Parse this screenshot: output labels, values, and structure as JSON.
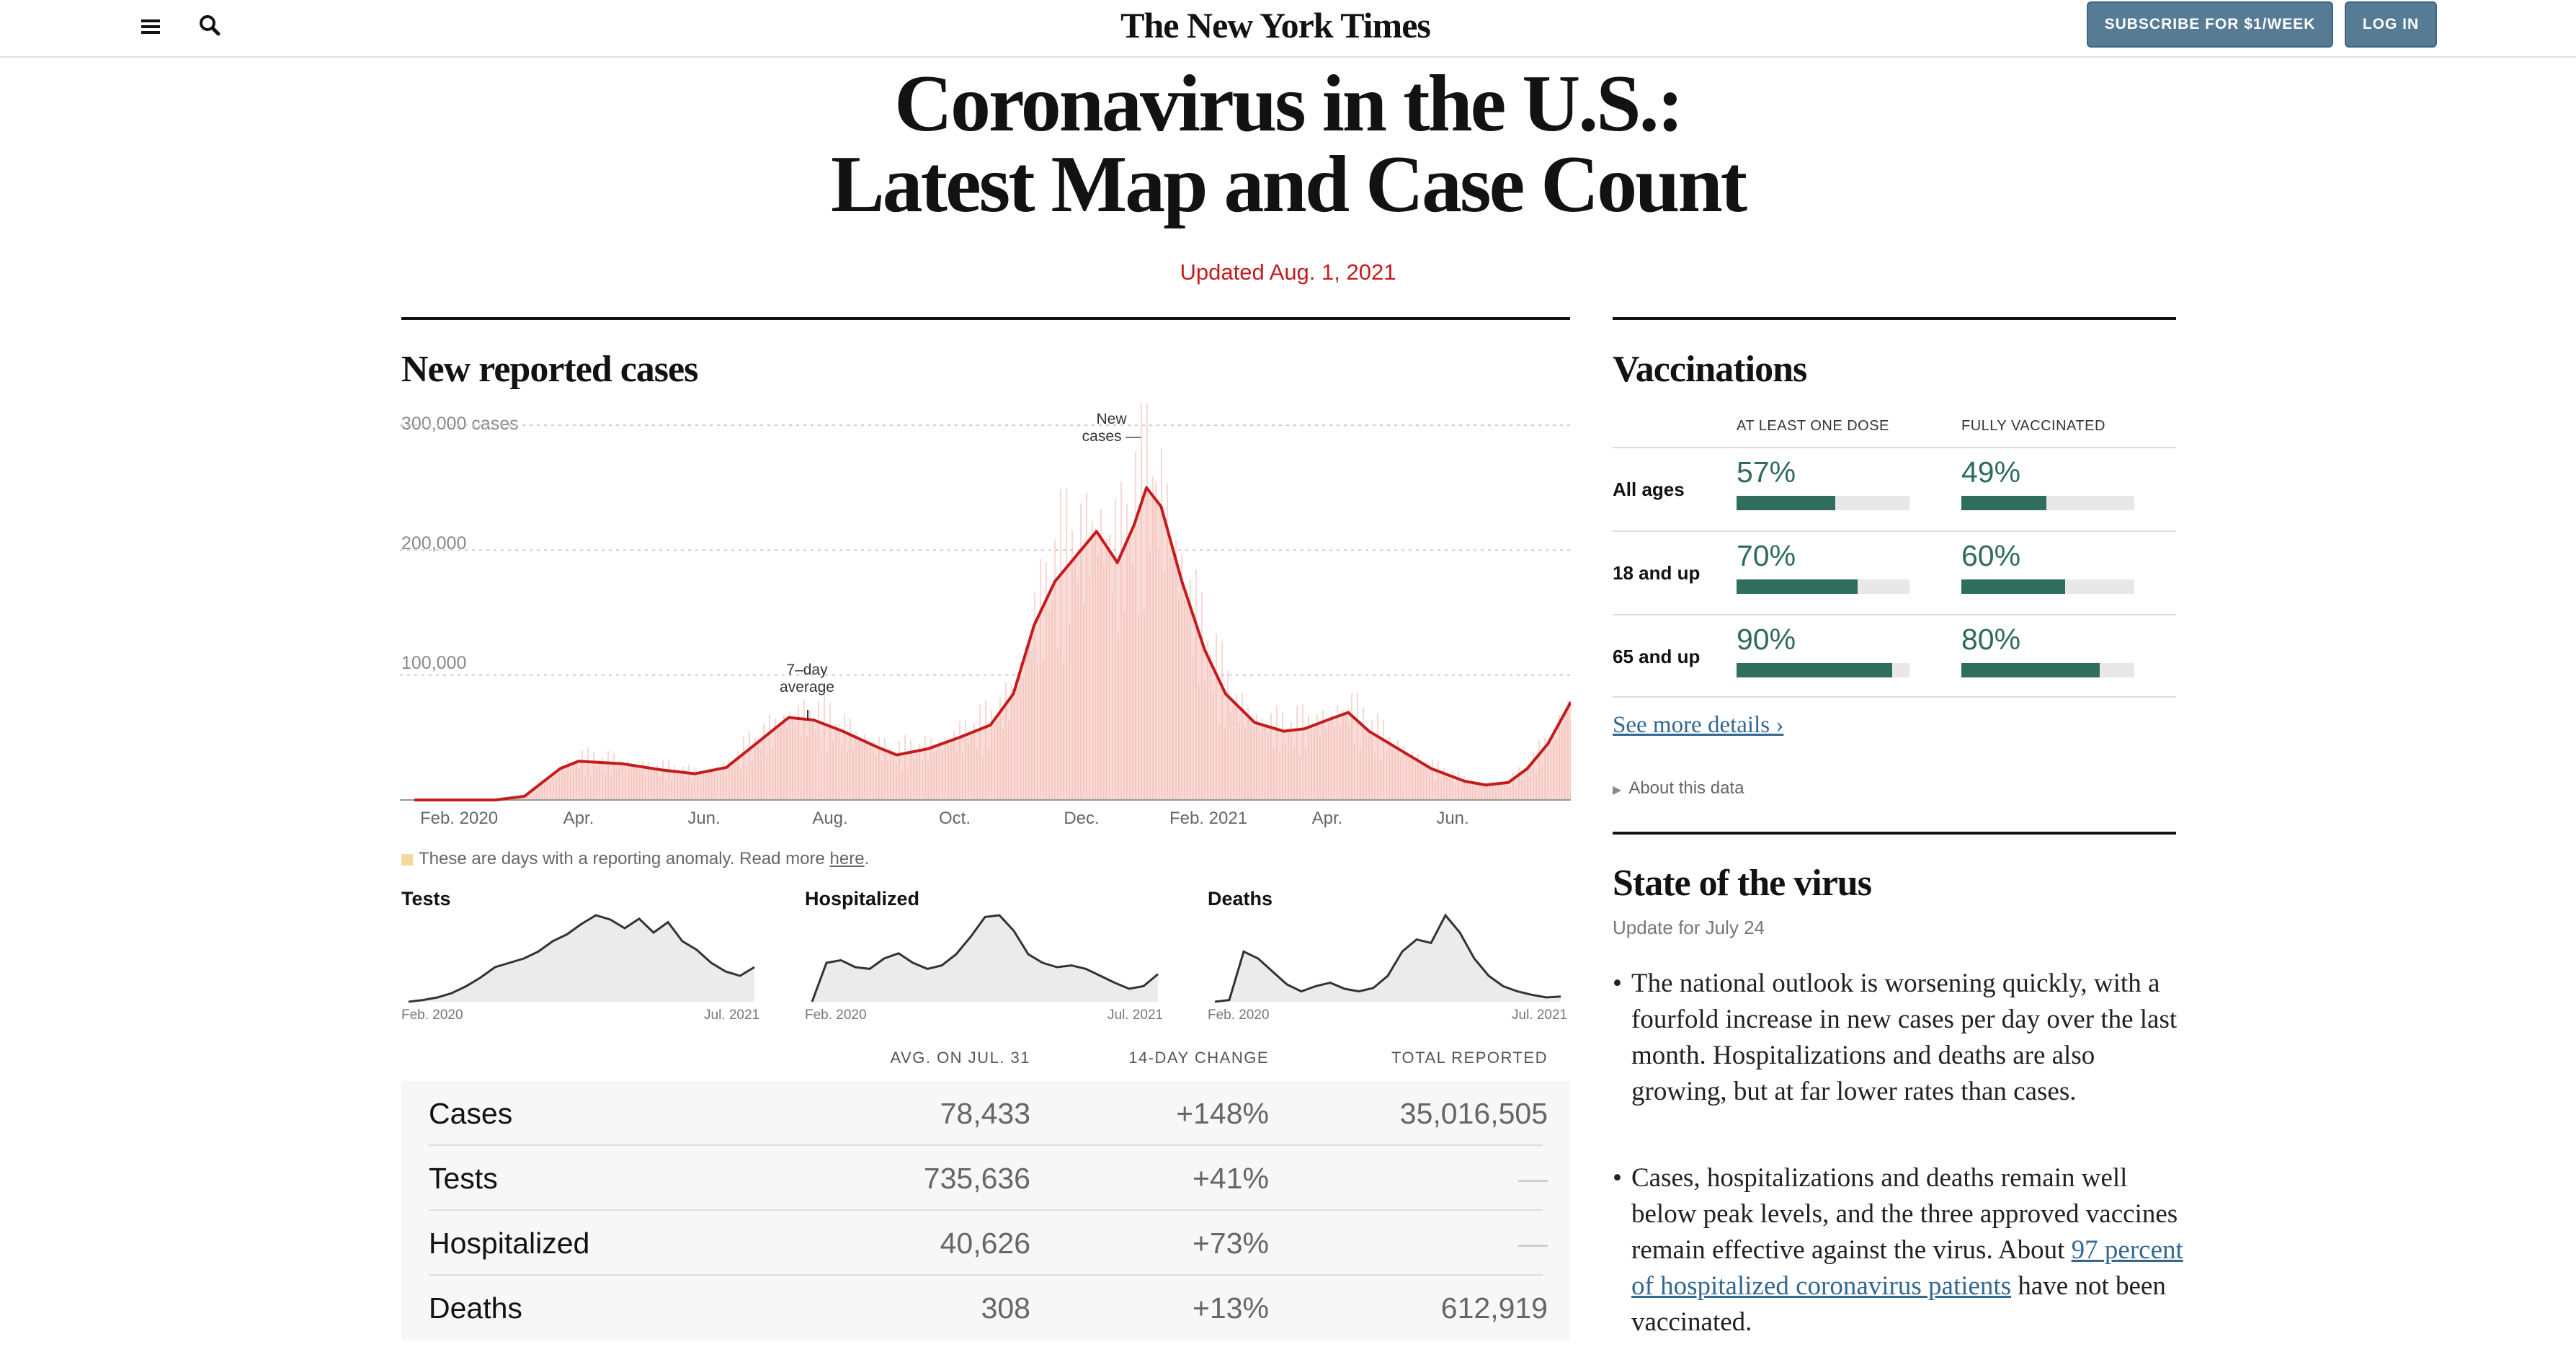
{
  "header": {
    "logo": "The New York Times",
    "subscribe_label": "SUBSCRIBE FOR $1/WEEK",
    "login_label": "LOG IN"
  },
  "page": {
    "title_line1": "Coronavirus in the U.S.:",
    "title_line2": "Latest Map and Case Count",
    "updated": "Updated Aug. 1, 2021"
  },
  "cases": {
    "heading": "New reported cases",
    "anomaly_note_prefix": "These are days with a reporting anomaly. Read more ",
    "anomaly_link": "here",
    "anomaly_suffix": "."
  },
  "chart_data": {
    "type": "bar",
    "title": "New reported cases",
    "y_ticks": [
      "300,000 cases",
      "200,000",
      "100,000"
    ],
    "ylim": [
      0,
      300000
    ],
    "x_ticks": [
      "Feb. 2020",
      "Apr.",
      "Jun.",
      "Aug.",
      "Oct.",
      "Dec.",
      "Feb. 2021",
      "Apr.",
      "Jun."
    ],
    "annotations": [
      "7-day average",
      "New cases —"
    ],
    "series": [
      {
        "name": "7-day average",
        "x": [
          "2020-01-22",
          "2020-03-01",
          "2020-03-15",
          "2020-04-01",
          "2020-04-10",
          "2020-05-01",
          "2020-05-20",
          "2020-06-05",
          "2020-06-20",
          "2020-07-05",
          "2020-07-20",
          "2020-08-01",
          "2020-08-15",
          "2020-09-01",
          "2020-09-10",
          "2020-09-25",
          "2020-10-10",
          "2020-10-25",
          "2020-11-05",
          "2020-11-15",
          "2020-11-25",
          "2020-12-05",
          "2020-12-15",
          "2020-12-25",
          "2021-01-02",
          "2021-01-08",
          "2021-01-15",
          "2021-01-25",
          "2021-02-05",
          "2021-02-15",
          "2021-03-01",
          "2021-03-15",
          "2021-03-25",
          "2021-04-05",
          "2021-04-15",
          "2021-04-25",
          "2021-05-10",
          "2021-05-25",
          "2021-06-10",
          "2021-06-20",
          "2021-07-01",
          "2021-07-10",
          "2021-07-20",
          "2021-07-31"
        ],
        "values": [
          0,
          0,
          3000,
          25000,
          31000,
          29000,
          24000,
          21000,
          26000,
          46000,
          66000,
          64000,
          55000,
          42000,
          36000,
          41000,
          50000,
          60000,
          85000,
          140000,
          175000,
          195000,
          215000,
          190000,
          220000,
          250000,
          235000,
          175000,
          120000,
          85000,
          62000,
          55000,
          57000,
          64000,
          70000,
          55000,
          40000,
          25000,
          15000,
          12000,
          14000,
          25000,
          45000,
          78433
        ]
      }
    ]
  },
  "small_multiples": [
    {
      "title": "Tests",
      "start": "Feb. 2020",
      "end": "Jul. 2021",
      "values": [
        0,
        2,
        5,
        10,
        18,
        28,
        40,
        45,
        50,
        58,
        70,
        78,
        90,
        100,
        95,
        85,
        96,
        80,
        92,
        70,
        60,
        45,
        35,
        30,
        40
      ]
    },
    {
      "title": "Hospitalized",
      "start": "Feb. 2020",
      "end": "Jul. 2021",
      "values": [
        0,
        45,
        48,
        40,
        38,
        50,
        56,
        45,
        38,
        42,
        55,
        75,
        98,
        100,
        82,
        55,
        45,
        40,
        42,
        38,
        30,
        22,
        15,
        18,
        32
      ]
    },
    {
      "title": "Deaths",
      "start": "Feb. 2020",
      "end": "Jul. 2021",
      "values": [
        0,
        2,
        58,
        50,
        35,
        20,
        12,
        18,
        22,
        15,
        12,
        16,
        30,
        58,
        72,
        68,
        100,
        80,
        50,
        30,
        18,
        12,
        8,
        5,
        6
      ]
    }
  ],
  "table": {
    "headers": [
      "AVG. ON JUL. 31",
      "14-DAY CHANGE",
      "TOTAL REPORTED"
    ],
    "rows": [
      {
        "label": "Cases",
        "avg": "78,433",
        "change": "+148%",
        "total": "35,016,505"
      },
      {
        "label": "Tests",
        "avg": "735,636",
        "change": "+41%",
        "total": "—"
      },
      {
        "label": "Hospitalized",
        "avg": "40,626",
        "change": "+73%",
        "total": "—"
      },
      {
        "label": "Deaths",
        "avg": "308",
        "change": "+13%",
        "total": "612,919"
      }
    ]
  },
  "vaccinations": {
    "heading": "Vaccinations",
    "col1": "AT LEAST ONE DOSE",
    "col2": "FULLY VACCINATED",
    "rows": [
      {
        "label": "All ages",
        "one_dose": "57%",
        "one_dose_value": 0.57,
        "full": "49%",
        "full_value": 0.49
      },
      {
        "label": "18 and up",
        "one_dose": "70%",
        "one_dose_value": 0.7,
        "full": "60%",
        "full_value": 0.6
      },
      {
        "label": "65 and up",
        "one_dose": "90%",
        "one_dose_value": 0.9,
        "full": "80%",
        "full_value": 0.8
      }
    ],
    "more_link": "See more details ›",
    "about": "About this data"
  },
  "state_of_virus": {
    "heading": "State of the virus",
    "subheading": "Update for July 24",
    "bullet1": "The national outlook is worsening quickly, with a fourfold increase in new cases per day over the last month. Hospitalizations and deaths are also growing, but at far lower rates than cases.",
    "bullet2_pre": "Cases, hospitalizations and deaths remain well below peak levels, and the three approved vaccines remain effective against the virus. About ",
    "bullet2_link": "97 percent of hospitalized coronavirus patients",
    "bullet2_post": " have not been vaccinated."
  },
  "colors": {
    "accent_red": "#c41c1c",
    "vax_green": "#2f6e5c",
    "bar_fill": "#f7cfcb",
    "line": "#c41c1c",
    "link": "#326891"
  }
}
